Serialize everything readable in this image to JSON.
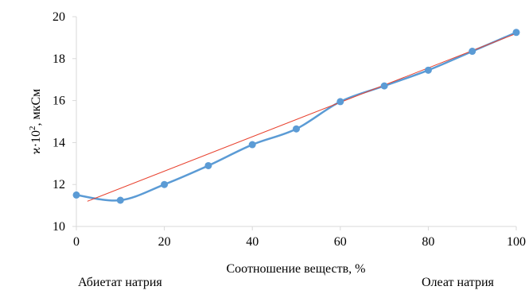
{
  "chart_data": {
    "type": "line",
    "xlabel": "Соотношение веществ, %",
    "ylabel_main": "ϰ·10",
    "ylabel_sup": "2",
    "ylabel_unit": ", мкСм",
    "xlim": [
      0,
      100
    ],
    "ylim": [
      10,
      20
    ],
    "x_ticks": [
      "0",
      "20",
      "40",
      "60",
      "80",
      "100"
    ],
    "y_ticks": [
      "10",
      "12",
      "14",
      "16",
      "18",
      "20"
    ],
    "series": [
      {
        "kind": "data",
        "x": [
          0,
          10,
          20,
          30,
          40,
          50,
          60,
          70,
          80,
          90,
          100
        ],
        "y": [
          11.5,
          11.25,
          12.0,
          12.9,
          13.9,
          14.65,
          15.95,
          16.7,
          17.45,
          18.35,
          19.25
        ]
      },
      {
        "kind": "trendline",
        "x": [
          2.5,
          100
        ],
        "y": [
          11.2,
          19.2
        ]
      }
    ],
    "colors": {
      "data": "#5b9bd5",
      "trend": "#e8412e",
      "axis": "#d9d9d9"
    },
    "grid": false
  },
  "captions": {
    "left": "Абиетат натрия",
    "right": "Олеат натрия"
  }
}
